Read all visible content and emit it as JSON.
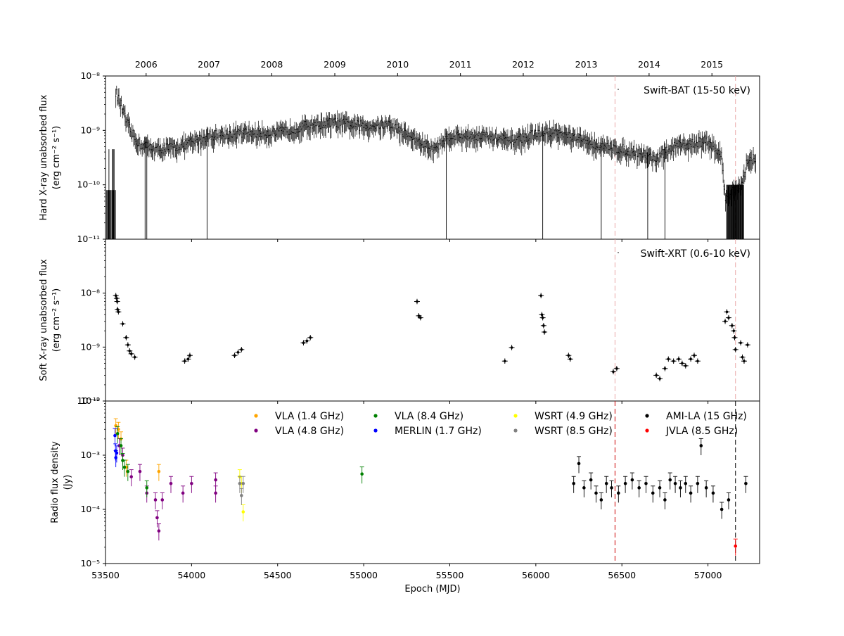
{
  "chart_data": [
    {
      "type": "scatter",
      "panel": "hard-xray",
      "ylabel_lines": [
        "Hard X-ray unabsorbed flux",
        "(erg cm⁻² s⁻¹)"
      ],
      "xlim": [
        53500,
        57300
      ],
      "ylim": [
        1e-11,
        1e-08
      ],
      "yscale": "log",
      "yticks": [
        {
          "v": 1e-11,
          "label": "10⁻¹¹"
        },
        {
          "v": 1e-10,
          "label": "10⁻¹⁰"
        },
        {
          "v": 1e-09,
          "label": "10⁻⁹"
        },
        {
          "v": 1e-08,
          "label": "10⁻⁸"
        }
      ],
      "legend": [
        {
          "name": "Swift-BAT (15-50 keV)",
          "color": "#000000"
        }
      ],
      "legend_position": "top-right",
      "series": [
        {
          "name": "Swift-BAT (15-50 keV)",
          "color": "#000000",
          "trend": [
            [
              53560,
              5e-09
            ],
            [
              53590,
              3e-09
            ],
            [
              53620,
              1.5e-09
            ],
            [
              53660,
              8e-10
            ],
            [
              53700,
              5.5e-10
            ],
            [
              53800,
              4.5e-10
            ],
            [
              53900,
              5e-10
            ],
            [
              54000,
              6e-10
            ],
            [
              54100,
              8e-10
            ],
            [
              54300,
              9e-10
            ],
            [
              54500,
              9e-10
            ],
            [
              54700,
              1.3e-09
            ],
            [
              54850,
              1.4e-09
            ],
            [
              55000,
              1.2e-09
            ],
            [
              55150,
              1.3e-09
            ],
            [
              55300,
              7e-10
            ],
            [
              55400,
              4.5e-10
            ],
            [
              55500,
              8e-10
            ],
            [
              55700,
              8e-10
            ],
            [
              55850,
              6.5e-10
            ],
            [
              56000,
              8.5e-10
            ],
            [
              56100,
              9.5e-10
            ],
            [
              56250,
              7e-10
            ],
            [
              56400,
              5e-10
            ],
            [
              56600,
              4e-10
            ],
            [
              56700,
              3e-10
            ],
            [
              56800,
              5e-10
            ],
            [
              57000,
              6.5e-10
            ],
            [
              57080,
              3.5e-10
            ],
            [
              57100,
              6e-11
            ],
            [
              57200,
              1e-10
            ],
            [
              57230,
              3e-10
            ],
            [
              57280,
              3e-10
            ]
          ],
          "drops": [
            53520,
            53540,
            53545,
            53550,
            53730,
            53740,
            54090,
            55480,
            56040,
            56380,
            56650,
            56750
          ]
        }
      ]
    },
    {
      "type": "scatter",
      "panel": "soft-xray",
      "ylabel_lines": [
        "Soft X-ray unabsorbed flux",
        "(erg cm⁻² s⁻¹)"
      ],
      "xlim": [
        53500,
        57300
      ],
      "ylim": [
        1e-10,
        1e-07
      ],
      "yscale": "log",
      "yticks": [
        {
          "v": 1e-10,
          "label": "10⁻¹⁰"
        },
        {
          "v": 1e-09,
          "label": "10⁻⁹"
        },
        {
          "v": 1e-08,
          "label": "10⁻⁸"
        }
      ],
      "legend": [
        {
          "name": "Swift-XRT (0.6-10 keV)",
          "color": "#000000"
        }
      ],
      "legend_position": "top-right",
      "series": [
        {
          "name": "Swift-XRT (0.6-10 keV)",
          "color": "#000000",
          "points": [
            [
              53560,
              9e-09
            ],
            [
              53565,
              8e-09
            ],
            [
              53568,
              7e-09
            ],
            [
              53570,
              5e-09
            ],
            [
              53575,
              4.5e-09
            ],
            [
              53600,
              2.7e-09
            ],
            [
              53620,
              1.5e-09
            ],
            [
              53630,
              1.1e-09
            ],
            [
              53640,
              8.5e-10
            ],
            [
              53650,
              7.5e-10
            ],
            [
              53670,
              6.5e-10
            ],
            [
              53960,
              5.5e-10
            ],
            [
              53980,
              6e-10
            ],
            [
              53990,
              7e-10
            ],
            [
              54250,
              7e-10
            ],
            [
              54270,
              8e-10
            ],
            [
              54290,
              9e-10
            ],
            [
              54650,
              1.2e-09
            ],
            [
              54670,
              1.3e-09
            ],
            [
              54690,
              1.5e-09
            ],
            [
              55310,
              7e-09
            ],
            [
              55320,
              3.8e-09
            ],
            [
              55330,
              3.5e-09
            ],
            [
              55820,
              5.5e-10
            ],
            [
              55860,
              9.8e-10
            ],
            [
              56030,
              9e-09
            ],
            [
              56035,
              4e-09
            ],
            [
              56040,
              3.5e-09
            ],
            [
              56045,
              2.5e-09
            ],
            [
              56050,
              1.9e-09
            ],
            [
              56190,
              7e-10
            ],
            [
              56200,
              6e-10
            ],
            [
              56450,
              3.5e-10
            ],
            [
              56470,
              4e-10
            ],
            [
              56700,
              3e-10
            ],
            [
              56720,
              2.6e-10
            ],
            [
              56750,
              4e-10
            ],
            [
              56770,
              6e-10
            ],
            [
              56800,
              5.5e-10
            ],
            [
              56830,
              6e-10
            ],
            [
              56850,
              5e-10
            ],
            [
              56870,
              4.5e-10
            ],
            [
              56900,
              6e-10
            ],
            [
              56920,
              7e-10
            ],
            [
              56940,
              5.5e-10
            ],
            [
              57100,
              3e-09
            ],
            [
              57110,
              4.5e-09
            ],
            [
              57120,
              3.5e-09
            ],
            [
              57140,
              2.5e-09
            ],
            [
              57150,
              2e-09
            ],
            [
              57155,
              1.5e-09
            ],
            [
              57160,
              9e-10
            ],
            [
              57190,
              1.2e-09
            ],
            [
              57200,
              6.5e-10
            ],
            [
              57210,
              5.5e-10
            ],
            [
              57230,
              1.1e-09
            ]
          ]
        }
      ]
    },
    {
      "type": "scatter",
      "panel": "radio",
      "ylabel_lines": [
        "Radio flux density",
        "(Jy)"
      ],
      "xlabel": "Epoch (MJD)",
      "xlim": [
        53500,
        57300
      ],
      "ylim": [
        1e-05,
        0.01
      ],
      "yscale": "log",
      "yticks": [
        {
          "v": 1e-05,
          "label": "10⁻⁵"
        },
        {
          "v": 0.0001,
          "label": "10⁻⁴"
        },
        {
          "v": 0.001,
          "label": "10⁻³"
        },
        {
          "v": 0.01,
          "label": "10⁻²"
        }
      ],
      "legend_position": "top",
      "series": [
        {
          "name": "VLA (1.4 GHz)",
          "color": "#ffa500",
          "points": [
            [
              53560,
              0.0035
            ],
            [
              53575,
              0.003
            ],
            [
              53590,
              0.002
            ],
            [
              53620,
              0.0006
            ],
            [
              53810,
              0.0005
            ]
          ]
        },
        {
          "name": "VLA (4.8 GHz)",
          "color": "#800080",
          "points": [
            [
              53580,
              0.0015
            ],
            [
              53600,
              0.001
            ],
            [
              53650,
              0.0004
            ],
            [
              53700,
              0.0005
            ],
            [
              53740,
              0.0002
            ],
            [
              53790,
              0.00015
            ],
            [
              53800,
              7e-05
            ],
            [
              53810,
              4e-05
            ],
            [
              53830,
              0.00015
            ],
            [
              53880,
              0.0003
            ],
            [
              53950,
              0.0002
            ],
            [
              54000,
              0.0003
            ],
            [
              54140,
              0.00035
            ],
            [
              54140,
              0.0002
            ]
          ]
        },
        {
          "name": "VLA (8.4 GHz)",
          "color": "#008000",
          "points": [
            [
              53570,
              0.0025
            ],
            [
              53590,
              0.0015
            ],
            [
              53600,
              0.0008
            ],
            [
              53610,
              0.0006
            ],
            [
              53630,
              0.0005
            ],
            [
              53740,
              0.00025
            ],
            [
              54990,
              0.00045
            ]
          ]
        },
        {
          "name": "MERLIN (1.7 GHz)",
          "color": "#0000ff",
          "points": [
            [
              53555,
              0.0023
            ],
            [
              53558,
              0.0012
            ],
            [
              53560,
              0.0009
            ],
            [
              53565,
              0.0011
            ]
          ]
        },
        {
          "name": "WSRT (4.9 GHz)",
          "color": "#ffff00",
          "points": [
            [
              54280,
              0.0004
            ],
            [
              54290,
              0.0003
            ],
            [
              54300,
              9e-05
            ]
          ]
        },
        {
          "name": "WSRT (8.5 GHz)",
          "color": "#808080",
          "points": [
            [
              54280,
              0.0003
            ],
            [
              54300,
              0.0003
            ],
            [
              54290,
              0.00018
            ]
          ]
        },
        {
          "name": "AMI-LA (15 GHz)",
          "color": "#000000",
          "points": [
            [
              56220,
              0.0003
            ],
            [
              56250,
              0.0007
            ],
            [
              56280,
              0.00025
            ],
            [
              56320,
              0.00035
            ],
            [
              56350,
              0.0002
            ],
            [
              56380,
              0.00015
            ],
            [
              56410,
              0.0003
            ],
            [
              56440,
              0.00025
            ],
            [
              56480,
              0.0002
            ],
            [
              56520,
              0.0003
            ],
            [
              56560,
              0.00035
            ],
            [
              56600,
              0.00025
            ],
            [
              56640,
              0.0003
            ],
            [
              56680,
              0.0002
            ],
            [
              56720,
              0.00025
            ],
            [
              56750,
              0.00015
            ],
            [
              56780,
              0.00035
            ],
            [
              56810,
              0.0003
            ],
            [
              56840,
              0.00025
            ],
            [
              56870,
              0.0003
            ],
            [
              56900,
              0.0002
            ],
            [
              56940,
              0.0003
            ],
            [
              56960,
              0.0015
            ],
            [
              56990,
              0.00025
            ],
            [
              57030,
              0.0002
            ],
            [
              57080,
              0.0001
            ],
            [
              57120,
              0.00015
            ],
            [
              57220,
              0.0003
            ]
          ]
        },
        {
          "name": "JVLA (8.5 GHz)",
          "color": "#ff0000",
          "points": [
            [
              57160,
              2.1e-05
            ]
          ]
        }
      ]
    }
  ],
  "top_axis": {
    "years": [
      {
        "label": "2006",
        "mjd": 53736
      },
      {
        "label": "2007",
        "mjd": 54101
      },
      {
        "label": "2008",
        "mjd": 54466
      },
      {
        "label": "2009",
        "mjd": 54832
      },
      {
        "label": "2010",
        "mjd": 55197
      },
      {
        "label": "2011",
        "mjd": 55562
      },
      {
        "label": "2012",
        "mjd": 55927
      },
      {
        "label": "2013",
        "mjd": 56293
      },
      {
        "label": "2014",
        "mjd": 56658
      },
      {
        "label": "2015",
        "mjd": 57023
      }
    ]
  },
  "x_ticks": [
    53500,
    54000,
    54500,
    55000,
    55500,
    56000,
    56500,
    57000
  ],
  "x_tick_labels": [
    "53500",
    "54000",
    "54500",
    "55000",
    "55500",
    "56000",
    "56500",
    "57000"
  ],
  "vlines": [
    {
      "mjd": 56460,
      "color": "#e8a8a8",
      "radio_color": "#cc0000"
    },
    {
      "mjd": 57160,
      "color": "#e8a8a8",
      "radio_color": "#000000"
    }
  ]
}
